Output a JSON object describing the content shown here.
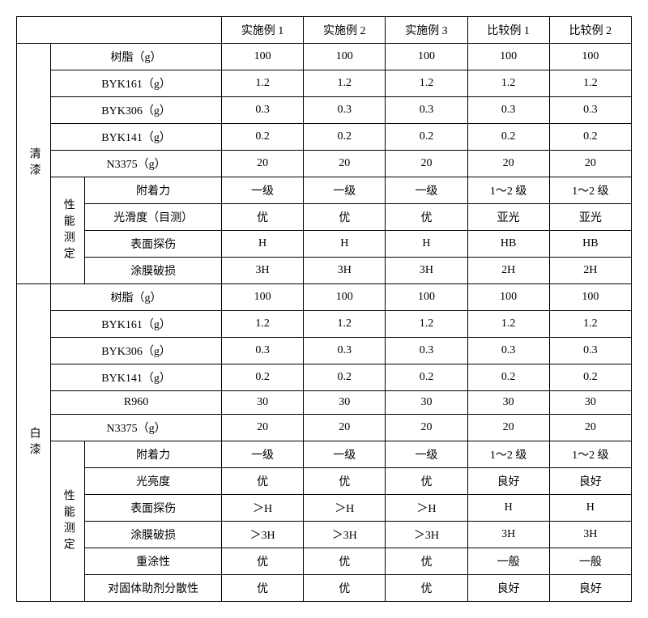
{
  "header": {
    "blank1": "",
    "blank2": "",
    "cols": [
      "实施例 1",
      "实施例 2",
      "实施例 3",
      "比较例 1",
      "比较例 2"
    ]
  },
  "qing": {
    "label": "清漆",
    "formula": [
      {
        "name": "树脂（g）",
        "v": [
          "100",
          "100",
          "100",
          "100",
          "100"
        ]
      },
      {
        "name": "BYK161（g）",
        "v": [
          "1.2",
          "1.2",
          "1.2",
          "1.2",
          "1.2"
        ]
      },
      {
        "name": "BYK306（g）",
        "v": [
          "0.3",
          "0.3",
          "0.3",
          "0.3",
          "0.3"
        ]
      },
      {
        "name": "BYK141（g）",
        "v": [
          "0.2",
          "0.2",
          "0.2",
          "0.2",
          "0.2"
        ]
      },
      {
        "name": "N3375（g）",
        "v": [
          "20",
          "20",
          "20",
          "20",
          "20"
        ]
      }
    ],
    "perfLabel": "性能测定",
    "perf": [
      {
        "name": "附着力",
        "v": [
          "一级",
          "一级",
          "一级",
          "1～2 级",
          "1～2 级"
        ]
      },
      {
        "name": "光滑度（目测）",
        "v": [
          "优",
          "优",
          "优",
          "亚光",
          "亚光"
        ]
      },
      {
        "name": "表面探伤",
        "v": [
          "H",
          "H",
          "H",
          "HB",
          "HB"
        ]
      },
      {
        "name": "涂膜破损",
        "v": [
          "3H",
          "3H",
          "3H",
          "2H",
          "2H"
        ]
      }
    ]
  },
  "bai": {
    "label": "白漆",
    "formula": [
      {
        "name": "树脂（g）",
        "v": [
          "100",
          "100",
          "100",
          "100",
          "100"
        ]
      },
      {
        "name": "BYK161（g）",
        "v": [
          "1.2",
          "1.2",
          "1.2",
          "1.2",
          "1.2"
        ]
      },
      {
        "name": "BYK306（g）",
        "v": [
          "0.3",
          "0.3",
          "0.3",
          "0.3",
          "0.3"
        ]
      },
      {
        "name": "BYK141（g）",
        "v": [
          "0.2",
          "0.2",
          "0.2",
          "0.2",
          "0.2"
        ]
      },
      {
        "name": "R960",
        "v": [
          "30",
          "30",
          "30",
          "30",
          "30"
        ]
      },
      {
        "name": "N3375（g）",
        "v": [
          "20",
          "20",
          "20",
          "20",
          "20"
        ]
      }
    ],
    "perfLabel": "性能测定",
    "perf": [
      {
        "name": "附着力",
        "v": [
          "一级",
          "一级",
          "一级",
          "1～2 级",
          "1～2 级"
        ]
      },
      {
        "name": "光亮度",
        "v": [
          "优",
          "优",
          "优",
          "良好",
          "良好"
        ]
      },
      {
        "name": "表面探伤",
        "v": [
          "＞H",
          "＞H",
          "＞H",
          "H",
          "H"
        ]
      },
      {
        "name": "涂膜破损",
        "v": [
          "＞3H",
          "＞3H",
          "＞3H",
          "3H",
          "3H"
        ]
      },
      {
        "name": "重涂性",
        "v": [
          "优",
          "优",
          "优",
          "一般",
          "一般"
        ]
      },
      {
        "name": "对固体助剂分散性",
        "v": [
          "优",
          "优",
          "优",
          "良好",
          "良好"
        ]
      }
    ]
  }
}
